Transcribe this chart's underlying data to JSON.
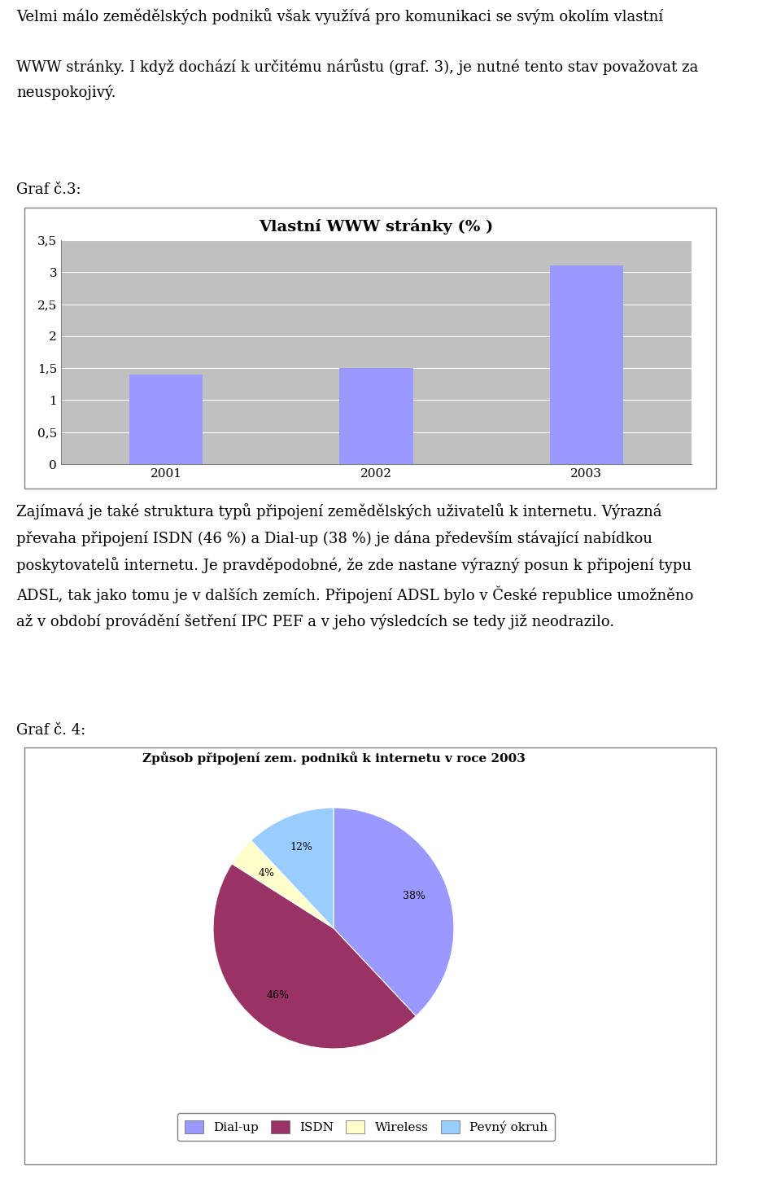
{
  "page_text_top_lines": [
    "Velmi málo zemědělských podniků však využívá pro komunikaci se svým okolím vlastní",
    "WWW stránky. I když dochází k určitému nárůstu (graf. 3), je nutné tento stav považovat za",
    "neuspokojivý."
  ],
  "graf3_label": "Graf č.3:",
  "bar_title": "Vlastní WWW stránky (% )",
  "bar_categories": [
    "2001",
    "2002",
    "2003"
  ],
  "bar_values": [
    1.4,
    1.5,
    3.1
  ],
  "bar_color": "#9999ff",
  "bar_ylim": [
    0,
    3.5
  ],
  "bar_yticks": [
    0,
    0.5,
    1,
    1.5,
    2,
    2.5,
    3,
    3.5
  ],
  "bar_ytick_labels": [
    "0",
    "0,5",
    "1",
    "1,5",
    "2",
    "2,5",
    "3",
    "3,5"
  ],
  "bar_bg_color": "#c0c0c0",
  "page_text_middle_lines": [
    "Zajímavá je také struktura typů připojení zemědělských uživatelů k internetu. Výrazná",
    "převaha připojení ISDN (46 %) a Dial-up (38 %) je dána především stávající nabídkou",
    "poskytovatelů internetu. Je pravděpodobné, že zde nastane výrazný posun k připojení typu",
    "ADSL, tak jako tomu je v dalších zemích. Připojení ADSL bylo v České republice umožněno",
    "až v období provádění šetření IPC PEF a v jeho výsledcích se tedy již neodrazilo."
  ],
  "graf4_label": "Graf č. 4:",
  "pie_title": "Způsob připojení zem. podniků k internetu v roce 2003",
  "pie_labels": [
    "Dial-up",
    "ISDN",
    "Wireless",
    "Pevný okruh"
  ],
  "pie_values": [
    38,
    46,
    4,
    12
  ],
  "pie_colors": [
    "#9999ff",
    "#993366",
    "#ffffcc",
    "#99ccff"
  ],
  "chart_border_color": "#808080",
  "bg_color": "#ffffff",
  "text_fontsize": 13,
  "bar_title_fontsize": 14,
  "pie_title_fontsize": 11
}
